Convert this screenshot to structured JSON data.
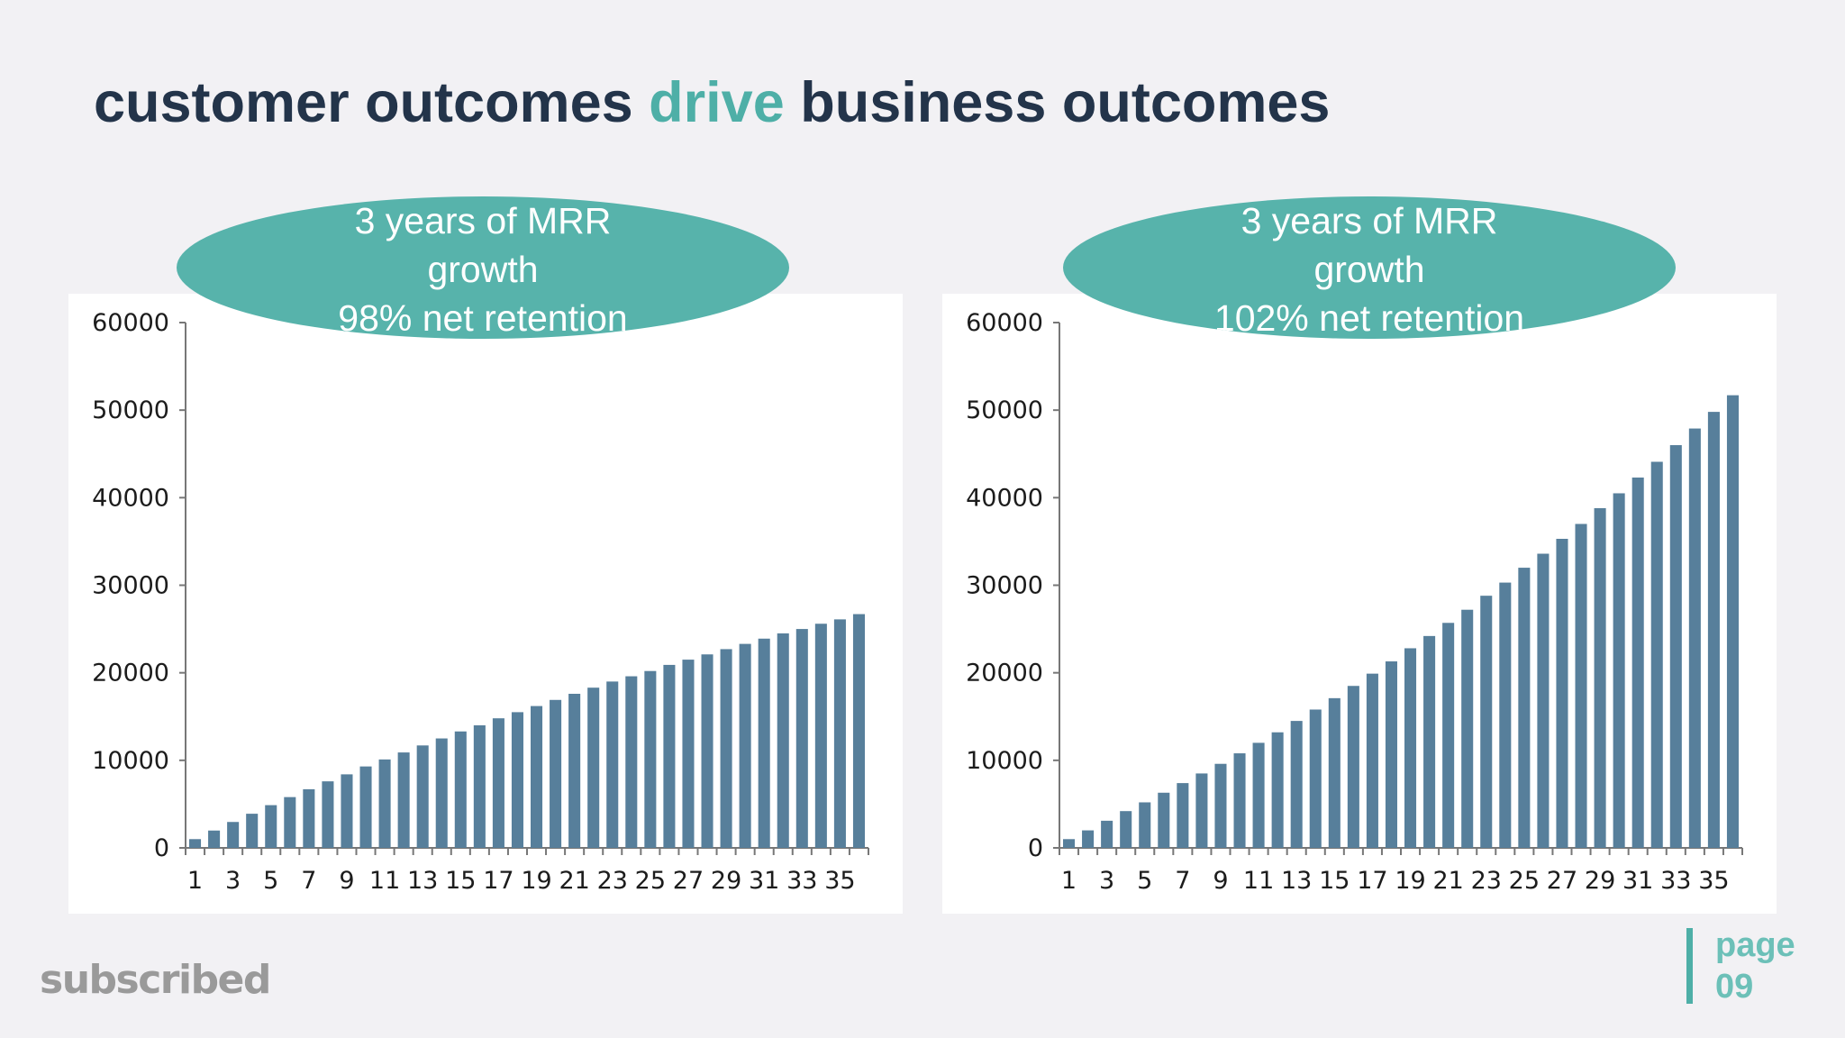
{
  "title": {
    "part1": "customer outcomes ",
    "accent": "drive",
    "part2": " business outcomes"
  },
  "colors": {
    "title": "#23344a",
    "accent": "#4eafa7",
    "bar": "#577f9b",
    "callout": "#57b3ab"
  },
  "charts": [
    {
      "callout": [
        "3 years of MRR",
        "growth",
        "98% net retention"
      ]
    },
    {
      "callout": [
        "3 years of MRR",
        "growth",
        "102% net retention"
      ]
    }
  ],
  "chart_data": [
    {
      "type": "bar",
      "title": "",
      "xlabel": "",
      "ylabel": "",
      "ylim": [
        0,
        60000
      ],
      "yticks": [
        0,
        10000,
        20000,
        30000,
        40000,
        50000,
        60000
      ],
      "xtick_labels": [
        "1",
        "3",
        "5",
        "7",
        "9",
        "11",
        "13",
        "15",
        "17",
        "19",
        "21",
        "23",
        "25",
        "27",
        "29",
        "31",
        "33",
        "35"
      ],
      "categories": [
        1,
        2,
        3,
        4,
        5,
        6,
        7,
        8,
        9,
        10,
        11,
        12,
        13,
        14,
        15,
        16,
        17,
        18,
        19,
        20,
        21,
        22,
        23,
        24,
        25,
        26,
        27,
        28,
        29,
        30,
        31,
        32,
        33,
        34,
        35,
        36
      ],
      "values": [
        1000,
        1980,
        2960,
        3900,
        4880,
        5800,
        6700,
        7600,
        8400,
        9300,
        10100,
        10900,
        11700,
        12500,
        13300,
        14000,
        14800,
        15500,
        16200,
        16900,
        17600,
        18300,
        19000,
        19600,
        20200,
        20900,
        21500,
        22100,
        22700,
        23300,
        23900,
        24500,
        25000,
        25600,
        26100,
        26700
      ],
      "grid": false,
      "legend": "none"
    },
    {
      "type": "bar",
      "title": "",
      "xlabel": "",
      "ylabel": "",
      "ylim": [
        0,
        60000
      ],
      "yticks": [
        0,
        10000,
        20000,
        30000,
        40000,
        50000,
        60000
      ],
      "xtick_labels": [
        "1",
        "3",
        "5",
        "7",
        "9",
        "11",
        "13",
        "15",
        "17",
        "19",
        "21",
        "23",
        "25",
        "27",
        "29",
        "31",
        "33",
        "35"
      ],
      "categories": [
        1,
        2,
        3,
        4,
        5,
        6,
        7,
        8,
        9,
        10,
        11,
        12,
        13,
        14,
        15,
        16,
        17,
        18,
        19,
        20,
        21,
        22,
        23,
        24,
        25,
        26,
        27,
        28,
        29,
        30,
        31,
        32,
        33,
        34,
        35,
        36
      ],
      "values": [
        1000,
        2000,
        3100,
        4200,
        5200,
        6300,
        7400,
        8500,
        9600,
        10800,
        12000,
        13200,
        14500,
        15800,
        17100,
        18500,
        19900,
        21300,
        22800,
        24200,
        25700,
        27200,
        28800,
        30300,
        32000,
        33600,
        35300,
        37000,
        38800,
        40500,
        42300,
        44100,
        46000,
        47900,
        49800,
        51700
      ],
      "grid": false,
      "legend": "none"
    }
  ],
  "footer": {
    "logo": "subscribed",
    "page_word": "page",
    "page_number": "09"
  }
}
